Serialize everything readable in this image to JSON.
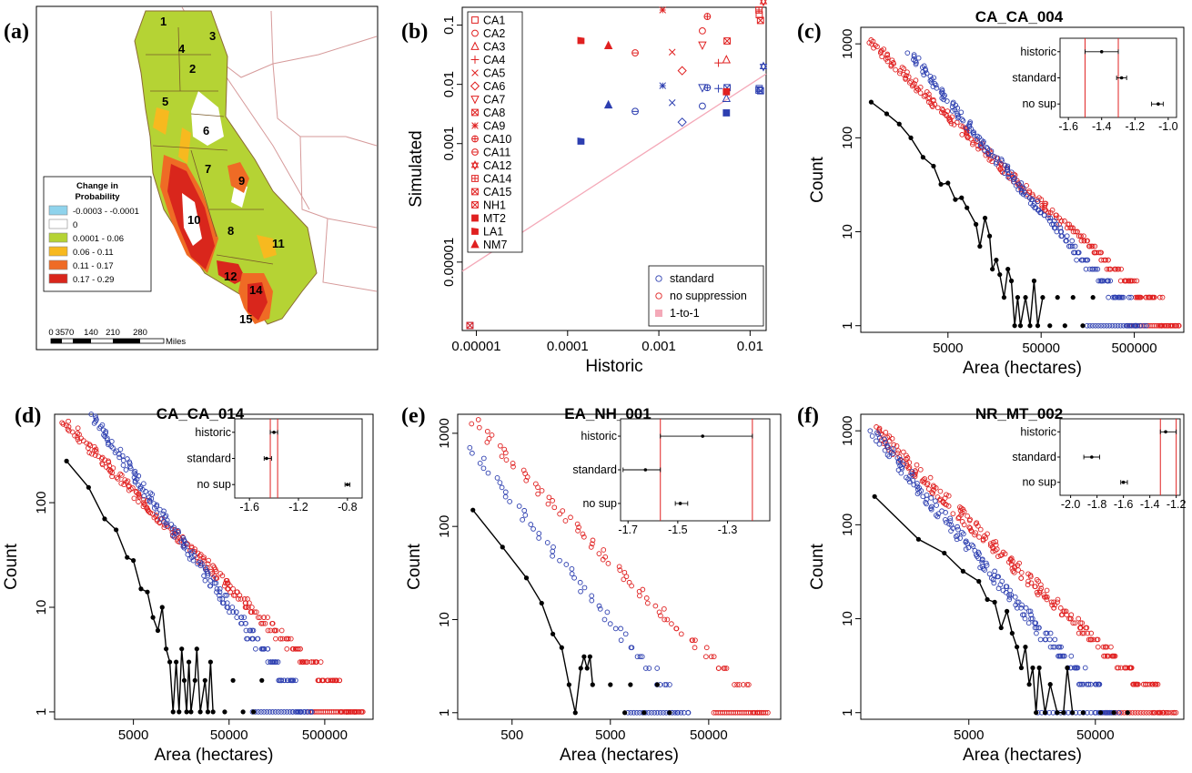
{
  "colors": {
    "blue": "#2d3fb0",
    "red": "#e02020",
    "black": "#000000",
    "pink": "#f4a9b8"
  },
  "panel_a": {
    "label": "(a)",
    "legend_title": [
      "Change in",
      "Probability"
    ],
    "legend_items": [
      {
        "label": "-0.0003 - -0.0001",
        "color": "#8fd3ec"
      },
      {
        "label": "0",
        "color": "#ffffff"
      },
      {
        "label": "0.0001 - 0.06",
        "color": "#b5d334"
      },
      {
        "label": "0.06 - 0.11",
        "color": "#f7b91f"
      },
      {
        "label": "0.11 - 0.17",
        "color": "#ef6b25"
      },
      {
        "label": "0.17 - 0.29",
        "color": "#d9261c"
      }
    ],
    "scale_numbers": [
      "0",
      "35",
      "70",
      "140",
      "210",
      "280"
    ],
    "scale_unit": "Miles",
    "region_numbers": [
      "1",
      "2",
      "3",
      "4",
      "5",
      "6",
      "7",
      "8",
      "9",
      "10",
      "11",
      "12",
      "14",
      "15"
    ]
  },
  "chart_data": [
    {
      "panel": "(b)",
      "type": "scatter",
      "title": "",
      "xlabel": "Historic",
      "ylabel": "Simulated",
      "xscale": "log",
      "yscale": "log",
      "xlim": [
        7e-06,
        0.015
      ],
      "ylim": [
        7e-07,
        0.2
      ],
      "xticks": [
        "0.00001",
        "0.0001",
        "0.001",
        "0.01"
      ],
      "yticks": [
        "0.00001",
        "0.001",
        "0.01",
        "0.1"
      ],
      "legend_sites": [
        "CA1",
        "CA2",
        "CA3",
        "CA4",
        "CA5",
        "CA6",
        "CA7",
        "CA8",
        "CA9",
        "CA10",
        "CA11",
        "CA12",
        "CA14",
        "CA15",
        "NH1",
        "MT2",
        "LA1",
        "NM7"
      ],
      "legend_series": [
        "standard",
        "no suppression",
        "1-to-1"
      ],
      "points": [
        {
          "site": "CA1",
          "historic": 0.0126,
          "standard": 0.0085,
          "no_suppression": 0.15
        },
        {
          "site": "CA2",
          "historic": 0.003,
          "standard": 0.0043,
          "no_suppression": 0.08
        },
        {
          "site": "CA3",
          "historic": 0.0055,
          "standard": 0.0058,
          "no_suppression": 0.026
        },
        {
          "site": "CA4",
          "historic": 0.0045,
          "standard": 0.0085,
          "no_suppression": 0.023
        },
        {
          "site": "CA5",
          "historic": 0.0014,
          "standard": 0.0049,
          "no_suppression": 0.035
        },
        {
          "site": "CA6",
          "historic": 0.0018,
          "standard": 0.0023,
          "no_suppression": 0.017
        },
        {
          "site": "CA7",
          "historic": 0.003,
          "standard": 0.0088,
          "no_suppression": 0.046
        },
        {
          "site": "CA8",
          "historic": 0.0056,
          "standard": 0.0088,
          "no_suppression": 0.054
        },
        {
          "site": "CA9",
          "historic": 0.0011,
          "standard": 0.0095,
          "no_suppression": 0.18
        },
        {
          "site": "CA10",
          "historic": 0.0034,
          "standard": 0.0088,
          "no_suppression": 0.14
        },
        {
          "site": "CA11",
          "historic": 0.00055,
          "standard": 0.0035,
          "no_suppression": 0.034
        },
        {
          "site": "CA12",
          "historic": 0.014,
          "standard": 0.02,
          "no_suppression": 0.25
        },
        {
          "site": "CA14",
          "historic": 0.0125,
          "standard": 0.008,
          "no_suppression": 0.18
        },
        {
          "site": "CA15",
          "historic": 0.013,
          "standard": 0.0078,
          "no_suppression": 0.12
        },
        {
          "site": "NH1",
          "historic": 8.5e-06,
          "standard": 8.5e-07,
          "no_suppression": 8.5e-07
        },
        {
          "site": "MT2",
          "historic": 0.0055,
          "standard": 0.0033,
          "no_suppression": 0.0075
        },
        {
          "site": "LA1",
          "historic": 0.00014,
          "standard": 0.0011,
          "no_suppression": 0.055
        },
        {
          "site": "NM7",
          "historic": 0.00028,
          "standard": 0.0045,
          "no_suppression": 0.045
        }
      ]
    },
    {
      "panel": "(c)",
      "type": "scatter",
      "title": "CA_CA_004",
      "xlabel": "Area (hectares)",
      "ylabel": "Count",
      "xscale": "log",
      "yscale": "log",
      "xlim": [
        580,
        1700000
      ],
      "ylim": [
        0.85,
        1500
      ],
      "xticks": [
        "5000",
        "50000",
        "500000"
      ],
      "yticks": [
        "1",
        "10",
        "100",
        "1000"
      ],
      "historic_line": [
        [
          750,
          240
        ],
        [
          1100,
          180
        ],
        [
          1500,
          140
        ],
        [
          2000,
          100
        ],
        [
          2700,
          62
        ],
        [
          3500,
          50
        ],
        [
          4200,
          32
        ],
        [
          5000,
          33
        ],
        [
          6000,
          22
        ],
        [
          7000,
          23
        ],
        [
          8000,
          18
        ],
        [
          10000,
          12
        ],
        [
          11000,
          7
        ],
        [
          12500,
          14
        ],
        [
          14000,
          9
        ],
        [
          15000,
          4
        ],
        [
          16500,
          5
        ],
        [
          18000,
          3.5
        ],
        [
          20000,
          2
        ],
        [
          22000,
          4
        ],
        [
          24000,
          3
        ],
        [
          26000,
          1
        ],
        [
          28000,
          2
        ],
        [
          30000,
          1
        ],
        [
          34000,
          2
        ],
        [
          38000,
          1
        ],
        [
          42000,
          3
        ],
        [
          46000,
          1
        ],
        [
          52000,
          2
        ]
      ],
      "historic_points": [
        [
          62000,
          1
        ],
        [
          75000,
          2
        ],
        [
          90000,
          1
        ],
        [
          110000,
          2
        ],
        [
          140000,
          1
        ],
        [
          180000,
          2
        ]
      ],
      "standard_curve": {
        "x_start": 2000,
        "y_start": 800,
        "x_end": 620000,
        "y_end": 1
      },
      "nosup_curve": {
        "x_start": 750,
        "y_start": 1100,
        "x_end": 1500000,
        "y_end": 1
      },
      "inset": {
        "rows": [
          "historic",
          "standard",
          "no sup"
        ],
        "xlim": [
          -1.65,
          -0.95
        ],
        "xticks": [
          "-1.6",
          "-1.4",
          "-1.2",
          "-1.0"
        ],
        "estimates": [
          {
            "v": -1.4,
            "lo": -1.5,
            "hi": -1.3
          },
          {
            "v": -1.28,
            "lo": -1.31,
            "hi": -1.25
          },
          {
            "v": -1.06,
            "lo": -1.1,
            "hi": -1.03
          }
        ]
      }
    },
    {
      "panel": "(d)",
      "type": "scatter",
      "title": "CA_CA_014",
      "xlabel": "Area (hectares)",
      "ylabel": "Count",
      "xscale": "log",
      "yscale": "log",
      "xlim": [
        750,
        1600000
      ],
      "ylim": [
        0.85,
        700
      ],
      "xticks": [
        "5000",
        "50000",
        "500000"
      ],
      "yticks": [
        "1",
        "10",
        "100"
      ],
      "historic_line": [
        [
          1000,
          250
        ],
        [
          1700,
          140
        ],
        [
          2500,
          70
        ],
        [
          3300,
          55
        ],
        [
          4300,
          30
        ],
        [
          5000,
          28
        ],
        [
          6000,
          15
        ],
        [
          7000,
          14
        ],
        [
          8000,
          8
        ],
        [
          9000,
          6
        ],
        [
          10000,
          10
        ],
        [
          11000,
          4
        ],
        [
          12000,
          3
        ],
        [
          13000,
          1
        ],
        [
          14000,
          3
        ],
        [
          15000,
          1
        ],
        [
          16000,
          4
        ],
        [
          17000,
          2
        ],
        [
          18000,
          1
        ],
        [
          19000,
          3
        ],
        [
          20000,
          1
        ],
        [
          22000,
          2
        ],
        [
          23000,
          4
        ],
        [
          25000,
          1
        ],
        [
          28000,
          2
        ],
        [
          30000,
          1
        ],
        [
          32000,
          3
        ],
        [
          34000,
          1
        ]
      ],
      "historic_points": [
        [
          45000,
          1
        ],
        [
          55000,
          2
        ],
        [
          70000,
          1
        ],
        [
          90000,
          1
        ],
        [
          110000,
          2
        ]
      ],
      "standard_curve": {
        "x_start": 1900,
        "y_start": 700,
        "x_end": 350000,
        "y_end": 1
      },
      "nosup_curve": {
        "x_start": 1000,
        "y_start": 600,
        "x_end": 1200000,
        "y_end": 1
      },
      "inset": {
        "rows": [
          "historic",
          "standard",
          "no sup"
        ],
        "xlim": [
          -1.72,
          -0.68
        ],
        "xticks": [
          "-1.6",
          "-1.2",
          "-0.8"
        ],
        "estimates": [
          {
            "v": -1.4,
            "lo": -1.43,
            "hi": -1.37
          },
          {
            "v": -1.46,
            "lo": -1.48,
            "hi": -1.42
          },
          {
            "v": -0.8,
            "lo": -0.82,
            "hi": -0.78
          }
        ]
      }
    },
    {
      "panel": "(e)",
      "type": "scatter",
      "title": "EA_NH_001",
      "xlabel": "Area (hectares)",
      "ylabel": "Count",
      "xscale": "log",
      "yscale": "log",
      "xlim": [
        140,
        270000
      ],
      "ylim": [
        0.85,
        1600
      ],
      "xticks": [
        "500",
        "5000",
        "50000"
      ],
      "yticks": [
        "1",
        "10",
        "100",
        "1000"
      ],
      "historic_line": [
        [
          200,
          150
        ],
        [
          400,
          60
        ],
        [
          700,
          28
        ],
        [
          1000,
          15
        ],
        [
          1300,
          7
        ],
        [
          1600,
          5
        ],
        [
          1900,
          2
        ],
        [
          2200,
          1
        ],
        [
          2500,
          3
        ],
        [
          2700,
          4
        ],
        [
          2900,
          3
        ],
        [
          3100,
          4
        ],
        [
          3300,
          2
        ]
      ],
      "historic_points": [
        [
          5000,
          2
        ],
        [
          7000,
          1
        ],
        [
          8000,
          2
        ],
        [
          11000,
          1
        ],
        [
          15000,
          2
        ],
        [
          20000,
          1
        ]
      ],
      "standard_curve": {
        "x_start": 200,
        "y_start": 700,
        "x_end": 30000,
        "y_end": 1
      },
      "nosup_curve": {
        "x_start": 200,
        "y_start": 1400,
        "x_end": 200000,
        "y_end": 1
      },
      "inset": {
        "rows": [
          "historic",
          "standard",
          "no sup"
        ],
        "xlim": [
          -1.73,
          -1.13
        ],
        "xticks": [
          "-1.7",
          "-1.5",
          "-1.3"
        ],
        "estimates": [
          {
            "v": -1.4,
            "lo": -1.57,
            "hi": -1.2
          },
          {
            "v": -1.63,
            "lo": -1.72,
            "hi": -1.57
          },
          {
            "v": -1.49,
            "lo": -1.51,
            "hi": -1.46
          }
        ]
      }
    },
    {
      "panel": "(f)",
      "type": "scatter",
      "title": "NR_MT_002",
      "xlabel": "Area (hectares)",
      "ylabel": "Count",
      "xscale": "log",
      "yscale": "log",
      "xlim": [
        700,
        250000
      ],
      "ylim": [
        0.85,
        1500
      ],
      "xticks": [
        "5000",
        "50000"
      ],
      "yticks": [
        "1",
        "10",
        "100",
        "1000"
      ],
      "historic_line": [
        [
          900,
          200
        ],
        [
          2000,
          70
        ],
        [
          3200,
          50
        ],
        [
          4500,
          32
        ],
        [
          6000,
          25
        ],
        [
          7000,
          16
        ],
        [
          8000,
          15
        ],
        [
          9000,
          8
        ],
        [
          10000,
          12
        ],
        [
          11000,
          7
        ],
        [
          12000,
          5
        ],
        [
          13000,
          3
        ],
        [
          14000,
          5
        ],
        [
          15000,
          2
        ],
        [
          16000,
          3
        ],
        [
          17000,
          1
        ],
        [
          18000,
          3
        ],
        [
          20000,
          1
        ],
        [
          22000,
          2
        ],
        [
          25000,
          1
        ],
        [
          28000,
          1
        ],
        [
          30000,
          3
        ],
        [
          33000,
          1
        ]
      ],
      "historic_points": [
        [
          40000,
          1
        ],
        [
          55000,
          1
        ],
        [
          70000,
          1
        ],
        [
          90000,
          1
        ]
      ],
      "standard_curve": {
        "x_start": 900,
        "y_start": 1000,
        "x_end": 70000,
        "y_end": 1
      },
      "nosup_curve": {
        "x_start": 900,
        "y_start": 1100,
        "x_end": 210000,
        "y_end": 1
      },
      "inset": {
        "rows": [
          "historic",
          "standard",
          "no sup"
        ],
        "xlim": [
          -2.08,
          -1.17
        ],
        "xticks": [
          "-2.0",
          "-1.8",
          "-1.6",
          "-1.4",
          "-1.2"
        ],
        "estimates": [
          {
            "v": -1.28,
            "lo": -1.32,
            "hi": -1.2
          },
          {
            "v": -1.84,
            "lo": -1.9,
            "hi": -1.78
          },
          {
            "v": -1.6,
            "lo": -1.62,
            "hi": -1.57
          }
        ]
      }
    }
  ]
}
